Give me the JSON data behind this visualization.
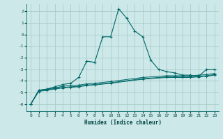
{
  "background_color": "#cde8e8",
  "grid_color": "#aacccc",
  "line_color": "#006868",
  "xlabel": "Humidex (Indice chaleur)",
  "xlim": [
    -0.5,
    23.5
  ],
  "ylim": [
    -6.6,
    2.6
  ],
  "yticks": [
    2,
    1,
    0,
    -1,
    -2,
    -3,
    -4,
    -5,
    -6
  ],
  "xticks": [
    0,
    1,
    2,
    3,
    4,
    5,
    6,
    7,
    8,
    9,
    10,
    11,
    12,
    13,
    14,
    15,
    16,
    17,
    18,
    19,
    20,
    21,
    22,
    23
  ],
  "series1_x": [
    0,
    1,
    2,
    3,
    4,
    5,
    6,
    7,
    8,
    9,
    10,
    11,
    12,
    13,
    14,
    15,
    16,
    17,
    18,
    19,
    20,
    21,
    22,
    23
  ],
  "series1_y": [
    -6.0,
    -4.8,
    -4.7,
    -4.5,
    -4.3,
    -4.2,
    -3.7,
    -2.3,
    -2.4,
    -0.2,
    -0.2,
    2.2,
    1.4,
    0.3,
    -0.2,
    -2.2,
    -3.0,
    -3.2,
    -3.3,
    -3.5,
    -3.5,
    -3.6,
    -3.0,
    -3.0
  ],
  "series2_x": [
    0,
    1,
    2,
    3,
    4,
    5,
    6,
    7,
    8,
    10,
    14,
    17,
    18,
    19,
    20,
    21,
    22,
    23
  ],
  "series2_y": [
    -6.0,
    -4.8,
    -4.7,
    -4.6,
    -4.45,
    -4.4,
    -4.35,
    -4.25,
    -4.2,
    -4.05,
    -3.7,
    -3.55,
    -3.55,
    -3.55,
    -3.55,
    -3.5,
    -3.45,
    -3.35
  ],
  "series3_x": [
    0,
    1,
    2,
    3,
    4,
    5,
    6,
    7,
    8,
    10,
    14,
    17,
    18,
    19,
    20,
    21,
    22,
    23
  ],
  "series3_y": [
    -6.0,
    -4.85,
    -4.75,
    -4.65,
    -4.55,
    -4.5,
    -4.45,
    -4.35,
    -4.3,
    -4.15,
    -3.8,
    -3.65,
    -3.65,
    -3.65,
    -3.65,
    -3.6,
    -3.55,
    -3.45
  ],
  "series4_x": [
    0,
    1,
    2,
    3,
    4,
    5,
    6,
    7,
    8,
    10,
    14,
    17,
    18,
    19,
    20,
    21,
    22,
    23
  ],
  "series4_y": [
    -6.0,
    -4.9,
    -4.8,
    -4.7,
    -4.6,
    -4.55,
    -4.5,
    -4.4,
    -4.35,
    -4.2,
    -3.85,
    -3.7,
    -3.7,
    -3.7,
    -3.7,
    -3.65,
    -3.6,
    -3.5
  ],
  "markers_s1_x": [
    0,
    1,
    2,
    3,
    4,
    5,
    6,
    7,
    8,
    9,
    10,
    11,
    12,
    13,
    14,
    15,
    16,
    17,
    18,
    19,
    20,
    21,
    22,
    23
  ],
  "markers_s1_y": [
    -6.0,
    -4.8,
    -4.7,
    -4.5,
    -4.3,
    -4.2,
    -3.7,
    -2.3,
    -2.4,
    -0.2,
    -0.2,
    2.2,
    1.4,
    0.3,
    -0.2,
    -2.2,
    -3.0,
    -3.2,
    -3.3,
    -3.5,
    -3.5,
    -3.6,
    -3.0,
    -3.0
  ],
  "markers_flat_x": [
    4,
    6,
    17,
    19,
    21,
    22,
    23
  ],
  "markers_flat_y": [
    -4.45,
    -4.35,
    -3.6,
    -3.6,
    -3.55,
    -3.5,
    -3.4
  ]
}
